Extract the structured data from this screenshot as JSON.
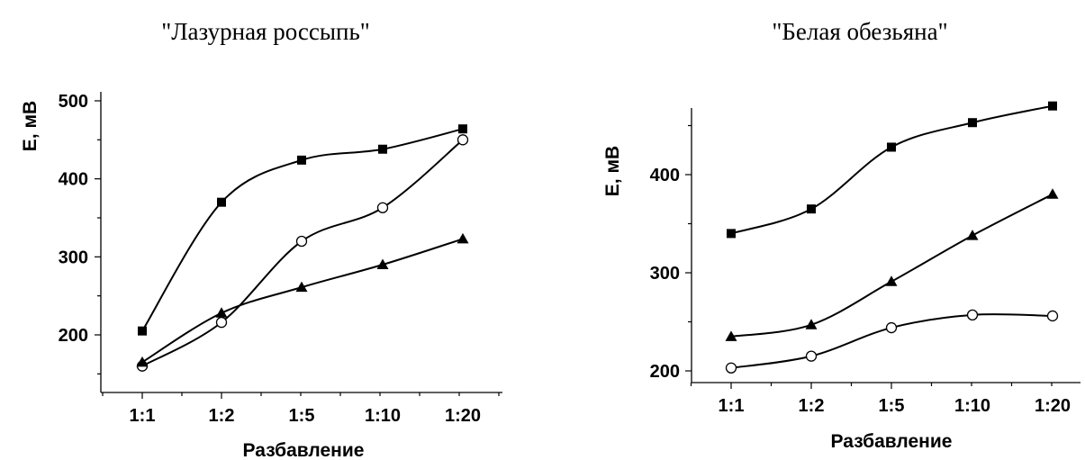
{
  "chart_data": [
    {
      "type": "line",
      "title": "\"Лазурная  россыпь\"",
      "xlabel": "Разбавление",
      "ylabel": "Е, мВ",
      "categories": [
        "1:1",
        "1:2",
        "1:5",
        "1:10",
        "1:20"
      ],
      "ylim": [
        140,
        500
      ],
      "yticks": [
        200,
        300,
        400,
        500
      ],
      "series": [
        {
          "marker": "square",
          "values": [
            205,
            370,
            424,
            438,
            464
          ]
        },
        {
          "marker": "circle",
          "values": [
            160,
            216,
            320,
            363,
            450
          ]
        },
        {
          "marker": "triangle",
          "values": [
            165,
            228,
            261,
            290,
            323
          ]
        }
      ]
    },
    {
      "type": "line",
      "title": "\"Белая обезьяна\"",
      "xlabel": "Разбавление",
      "ylabel": "Е, мВ",
      "categories": [
        "1:1",
        "1:2",
        "1:5",
        "1:10",
        "1:20"
      ],
      "ylim": [
        190,
        485
      ],
      "yticks": [
        200,
        300,
        400
      ],
      "series": [
        {
          "marker": "square",
          "values": [
            340,
            365,
            428,
            453,
            470
          ]
        },
        {
          "marker": "triangle",
          "values": [
            235,
            247,
            291,
            338,
            380
          ]
        },
        {
          "marker": "circle",
          "values": [
            203,
            215,
            244,
            257,
            256
          ]
        }
      ]
    }
  ]
}
